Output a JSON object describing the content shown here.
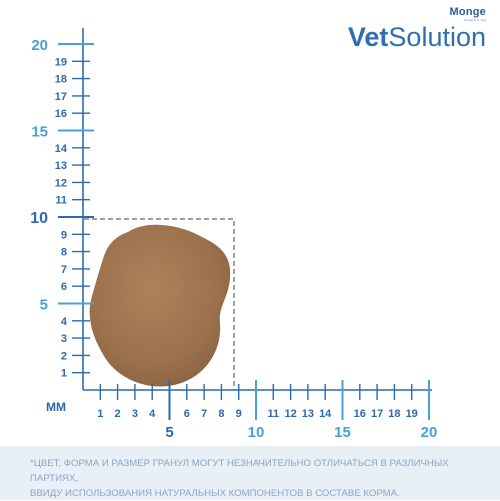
{
  "brand": {
    "company": "Monge",
    "company_tagline": "Monge & C. Spa",
    "product_line_bold": "Vet",
    "product_line_rest": "Solution"
  },
  "ruler": {
    "unit_label": "мм",
    "x_small_labels": [
      "1",
      "2",
      "3",
      "4",
      "6",
      "7",
      "8",
      "9",
      "11",
      "12",
      "13",
      "14",
      "16",
      "17",
      "18",
      "19"
    ],
    "x_major_labels": [
      "5",
      "10",
      "15",
      "20"
    ],
    "y_small_labels": [
      "1",
      "2",
      "3",
      "4",
      "6",
      "7",
      "8",
      "9",
      "11",
      "12",
      "13",
      "14",
      "16",
      "17",
      "18",
      "19"
    ],
    "y_major_labels": [
      "5",
      "10",
      "15",
      "20"
    ],
    "granule_width_mm": 9,
    "granule_height_mm": 10
  },
  "colors": {
    "ruler_small": "#2c69b0",
    "ruler_major": "#4aa0d4",
    "granule": "#a0724a",
    "footer_bg": "#e9eff6",
    "footer_text": "#8aa6c3"
  },
  "footer": {
    "line1": "*ЦВЕТ, ФОРМА И РАЗМЕР ГРАНУЛ МОГУТ НЕЗНАЧИТЕЛЬНО ОТЛИЧАТЬСЯ В РАЗЛИЧНЫХ ПАРТИЯХ,",
    "line2": "ВВИДУ ИСПОЛЬЗОВАНИЯ НАТУРАЛЬНЫХ КОМПОНЕНТОВ В СОСТАВЕ КОРМА."
  }
}
